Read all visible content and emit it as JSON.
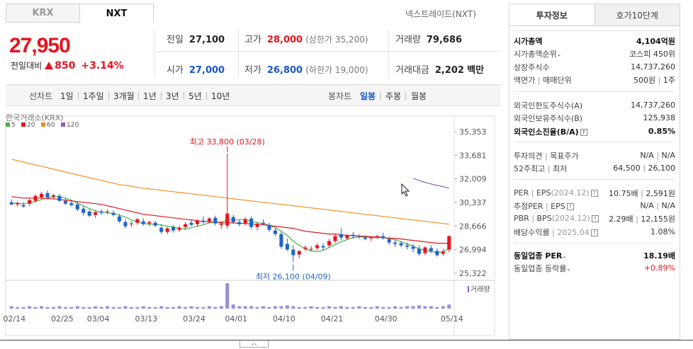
{
  "tabs": {
    "krx": "KRX",
    "nxt": "NXT"
  },
  "broker": "넥스트레이드(NXT)",
  "quote": {
    "price": "27,950",
    "change_label": "전일대비",
    "change": "850",
    "change_pct": "+3.14%"
  },
  "summary": {
    "prev_label": "전일",
    "prev": "27,100",
    "high_label": "고가",
    "high": "28,000",
    "upper_limit": "(상한가 35,200)",
    "volume_label": "거래량",
    "volume": "79,686",
    "open_label": "시가",
    "open": "27,000",
    "low_label": "저가",
    "low": "26,800",
    "lower_limit": "(하한가 19,000)",
    "amount_label": "거래대금",
    "amount": "2,202",
    "amount_unit": "백만"
  },
  "toolbar": {
    "line_label": "선차트",
    "periods": [
      "1일",
      "1주일",
      "3개월",
      "1년",
      "3년",
      "5년",
      "10년"
    ],
    "candle_label": "봉차트",
    "candles": [
      "일봉",
      "주봉",
      "월봉"
    ],
    "selected_candle": "일봉"
  },
  "chart_data": {
    "type": "candlestick",
    "source_label": "한국거래소(KRX)",
    "legend": [
      {
        "name": "5",
        "color": "#4caf50"
      },
      {
        "name": "20",
        "color": "#e4151f"
      },
      {
        "name": "60",
        "color": "#f08c1e"
      },
      {
        "name": "120",
        "color": "#8e5cc7"
      }
    ],
    "y_ticks": [
      "35,353",
      "33,681",
      "32,009",
      "30,337",
      "28,666",
      "26,994",
      "25,322"
    ],
    "ylim": [
      25322,
      35353
    ],
    "x_ticks": [
      "02/14",
      "02/25",
      "03/04",
      "03/13",
      "03/24",
      "04/01",
      "04/10",
      "04/21",
      "04/30",
      "05/14"
    ],
    "high_annotation": "최고 33,800 (03/28)",
    "low_annotation": "최저 26,100 (04/09)",
    "volume_label": "거래량",
    "candles": [
      {
        "o": 30350,
        "h": 30550,
        "l": 30150,
        "c": 30200
      },
      {
        "o": 30200,
        "h": 30400,
        "l": 30050,
        "c": 30300
      },
      {
        "o": 30150,
        "h": 30350,
        "l": 29950,
        "c": 30050
      },
      {
        "o": 30250,
        "h": 30600,
        "l": 30100,
        "c": 30500
      },
      {
        "o": 30450,
        "h": 30900,
        "l": 30350,
        "c": 30800
      },
      {
        "o": 30700,
        "h": 31100,
        "l": 30600,
        "c": 30950
      },
      {
        "o": 31000,
        "h": 31200,
        "l": 30650,
        "c": 30700
      },
      {
        "o": 30750,
        "h": 30950,
        "l": 30550,
        "c": 30850
      },
      {
        "o": 30800,
        "h": 30950,
        "l": 30400,
        "c": 30450
      },
      {
        "o": 30450,
        "h": 30650,
        "l": 30150,
        "c": 30250
      },
      {
        "o": 30300,
        "h": 30500,
        "l": 30050,
        "c": 30150
      },
      {
        "o": 30200,
        "h": 30350,
        "l": 29700,
        "c": 29850
      },
      {
        "o": 29900,
        "h": 30050,
        "l": 29400,
        "c": 29600
      },
      {
        "o": 29700,
        "h": 29850,
        "l": 29300,
        "c": 29400
      },
      {
        "o": 29450,
        "h": 29750,
        "l": 29250,
        "c": 29650
      },
      {
        "o": 29700,
        "h": 29850,
        "l": 29450,
        "c": 29600
      },
      {
        "o": 29650,
        "h": 29850,
        "l": 29500,
        "c": 29700
      },
      {
        "o": 29600,
        "h": 29800,
        "l": 29350,
        "c": 29450
      },
      {
        "o": 29350,
        "h": 29500,
        "l": 28900,
        "c": 29000
      },
      {
        "o": 28950,
        "h": 29150,
        "l": 28500,
        "c": 28650
      },
      {
        "o": 28800,
        "h": 29000,
        "l": 28600,
        "c": 28850
      },
      {
        "o": 28900,
        "h": 29250,
        "l": 28750,
        "c": 29150
      },
      {
        "o": 29000,
        "h": 29200,
        "l": 28700,
        "c": 28800
      },
      {
        "o": 28850,
        "h": 29050,
        "l": 28650,
        "c": 28950
      },
      {
        "o": 28900,
        "h": 29050,
        "l": 28600,
        "c": 28700
      },
      {
        "o": 28550,
        "h": 28800,
        "l": 28100,
        "c": 28250
      },
      {
        "o": 28250,
        "h": 28600,
        "l": 28100,
        "c": 28500
      },
      {
        "o": 28600,
        "h": 28750,
        "l": 28200,
        "c": 28350
      },
      {
        "o": 28400,
        "h": 28700,
        "l": 28250,
        "c": 28550
      },
      {
        "o": 28600,
        "h": 28950,
        "l": 28400,
        "c": 28800
      },
      {
        "o": 28900,
        "h": 29100,
        "l": 28650,
        "c": 28750
      },
      {
        "o": 28800,
        "h": 29150,
        "l": 28600,
        "c": 29050
      },
      {
        "o": 29050,
        "h": 29350,
        "l": 28800,
        "c": 28950
      },
      {
        "o": 29000,
        "h": 29300,
        "l": 28850,
        "c": 29200
      },
      {
        "o": 29250,
        "h": 29400,
        "l": 28700,
        "c": 28850
      },
      {
        "o": 28750,
        "h": 29000,
        "l": 28450,
        "c": 28850
      },
      {
        "o": 28700,
        "h": 33800,
        "l": 28500,
        "c": 29550
      },
      {
        "o": 29300,
        "h": 29450,
        "l": 28800,
        "c": 28950
      },
      {
        "o": 28950,
        "h": 29100,
        "l": 28650,
        "c": 28800
      },
      {
        "o": 28850,
        "h": 29300,
        "l": 28700,
        "c": 29150
      },
      {
        "o": 29200,
        "h": 29350,
        "l": 28450,
        "c": 28600
      },
      {
        "o": 28600,
        "h": 28950,
        "l": 28350,
        "c": 28800
      },
      {
        "o": 28900,
        "h": 29150,
        "l": 28700,
        "c": 28800
      },
      {
        "o": 28750,
        "h": 28900,
        "l": 28250,
        "c": 28400
      },
      {
        "o": 28350,
        "h": 28500,
        "l": 27950,
        "c": 28100
      },
      {
        "o": 28100,
        "h": 28250,
        "l": 27050,
        "c": 27200
      },
      {
        "o": 27400,
        "h": 27800,
        "l": 26900,
        "c": 27000
      },
      {
        "o": 27000,
        "h": 27300,
        "l": 26100,
        "c": 26600
      },
      {
        "o": 26650,
        "h": 26950,
        "l": 26400,
        "c": 26900
      },
      {
        "o": 27050,
        "h": 27300,
        "l": 26900,
        "c": 27150
      },
      {
        "o": 27050,
        "h": 27250,
        "l": 26900,
        "c": 27050
      },
      {
        "o": 27100,
        "h": 27450,
        "l": 26950,
        "c": 27300
      },
      {
        "o": 27250,
        "h": 27450,
        "l": 26950,
        "c": 27150
      },
      {
        "o": 27300,
        "h": 27750,
        "l": 27150,
        "c": 27600
      },
      {
        "o": 27600,
        "h": 28100,
        "l": 27450,
        "c": 27950
      },
      {
        "o": 28100,
        "h": 28500,
        "l": 27650,
        "c": 27850
      },
      {
        "o": 27800,
        "h": 28100,
        "l": 27700,
        "c": 28000
      },
      {
        "o": 28050,
        "h": 28250,
        "l": 27750,
        "c": 27950
      },
      {
        "o": 27950,
        "h": 28100,
        "l": 27750,
        "c": 27900
      },
      {
        "o": 27850,
        "h": 28000,
        "l": 27650,
        "c": 27750
      },
      {
        "o": 27800,
        "h": 27950,
        "l": 27600,
        "c": 27850
      },
      {
        "o": 27900,
        "h": 28050,
        "l": 27750,
        "c": 27950
      },
      {
        "o": 27950,
        "h": 28200,
        "l": 27700,
        "c": 27800
      },
      {
        "o": 27750,
        "h": 27900,
        "l": 27350,
        "c": 27500
      },
      {
        "o": 27500,
        "h": 27700,
        "l": 27200,
        "c": 27400
      },
      {
        "o": 27450,
        "h": 27600,
        "l": 27150,
        "c": 27300
      },
      {
        "o": 27300,
        "h": 27500,
        "l": 27000,
        "c": 27200
      },
      {
        "o": 27200,
        "h": 27400,
        "l": 26800,
        "c": 27050
      },
      {
        "o": 27050,
        "h": 27300,
        "l": 26550,
        "c": 26700
      },
      {
        "o": 26750,
        "h": 27250,
        "l": 26600,
        "c": 27150
      },
      {
        "o": 27100,
        "h": 27300,
        "l": 26750,
        "c": 26900
      },
      {
        "o": 26900,
        "h": 27100,
        "l": 26500,
        "c": 26600
      },
      {
        "o": 26700,
        "h": 27050,
        "l": 26550,
        "c": 26850
      },
      {
        "o": 27000,
        "h": 28000,
        "l": 26800,
        "c": 27950
      }
    ],
    "ma": {
      "5": [
        30300,
        30250,
        30250,
        30300,
        30400,
        30550,
        30650,
        30750,
        30750,
        30650,
        30500,
        30300,
        30100,
        29900,
        29750,
        29650,
        29600,
        29550,
        29450,
        29300,
        29100,
        28950,
        28850,
        28800,
        28800,
        28750,
        28650,
        28600,
        28500,
        28450,
        28550,
        28650,
        28750,
        28900,
        28950,
        28950,
        29100,
        29100,
        29100,
        29150,
        29000,
        28900,
        28850,
        28700,
        28550,
        28300,
        28000,
        27600,
        27300,
        27050,
        26900,
        26850,
        26950,
        27150,
        27350,
        27550,
        27700,
        27850,
        27900,
        27900,
        27850,
        27850,
        27850,
        27800,
        27700,
        27550,
        27400,
        27250,
        27050,
        26950,
        26850,
        26800,
        26850,
        27050
      ],
      "20": [
        30750,
        30700,
        30650,
        30650,
        30650,
        30650,
        30600,
        30600,
        30550,
        30500,
        30450,
        30400,
        30350,
        30300,
        30250,
        30200,
        30100,
        30000,
        29900,
        29800,
        29700,
        29600,
        29500,
        29450,
        29400,
        29350,
        29300,
        29250,
        29200,
        29150,
        29100,
        29050,
        29000,
        28950,
        28950,
        28900,
        28900,
        28900,
        28850,
        28850,
        28800,
        28800,
        28750,
        28700,
        28650,
        28600,
        28550,
        28500,
        28400,
        28300,
        28250,
        28200,
        28150,
        28100,
        28100,
        28050,
        28000,
        28000,
        27950,
        27950,
        27900,
        27900,
        27850,
        27800,
        27800,
        27750,
        27700,
        27650,
        27600,
        27550,
        27500,
        27450,
        27450,
        27450
      ],
      "60": [
        33400,
        33300,
        33200,
        33100,
        33000,
        32900,
        32800,
        32700,
        32600,
        32500,
        32400,
        32300,
        32200,
        32100,
        32000,
        31900,
        31800,
        31700,
        31600,
        31550,
        31500,
        31400,
        31350,
        31300,
        31250,
        31200,
        31150,
        31100,
        31050,
        31000,
        30950,
        30900,
        30850,
        30800,
        30750,
        30700,
        30650,
        30600,
        30550,
        30500,
        30450,
        30400,
        30350,
        30300,
        30250,
        30200,
        30150,
        30100,
        30050,
        30000,
        29950,
        29900,
        29850,
        29800,
        29750,
        29700,
        29650,
        29600,
        29550,
        29500,
        29450,
        29400,
        29350,
        29300,
        29250,
        29200,
        29150,
        29100,
        29050,
        29000,
        28950,
        28900,
        28850,
        28800
      ],
      "120": [
        null,
        null,
        null,
        null,
        null,
        null,
        null,
        null,
        null,
        null,
        null,
        null,
        null,
        null,
        null,
        null,
        null,
        null,
        null,
        null,
        null,
        null,
        null,
        null,
        null,
        null,
        null,
        null,
        null,
        null,
        null,
        null,
        null,
        null,
        null,
        null,
        null,
        null,
        null,
        null,
        null,
        null,
        null,
        null,
        null,
        null,
        null,
        null,
        null,
        null,
        null,
        null,
        null,
        null,
        null,
        null,
        null,
        null,
        null,
        null,
        null,
        null,
        null,
        null,
        null,
        null,
        null,
        32050,
        31900,
        31750,
        31650,
        31550,
        31450,
        31350
      ]
    },
    "volume": [
      3,
      2,
      2,
      3,
      2,
      3,
      2,
      2,
      3,
      2,
      2,
      3,
      2,
      2,
      3,
      2,
      3,
      2,
      2,
      3,
      2,
      2,
      3,
      2,
      2,
      3,
      2,
      2,
      3,
      2,
      3,
      2,
      2,
      3,
      2,
      3,
      31,
      5,
      3,
      3,
      3,
      2,
      3,
      2,
      3,
      3,
      4,
      3,
      2,
      2,
      3,
      2,
      2,
      3,
      2,
      3,
      2,
      2,
      3,
      2,
      2,
      3,
      2,
      2,
      3,
      2,
      3,
      3,
      4,
      3,
      3,
      2,
      3,
      5
    ]
  },
  "panel": {
    "tab_info": "투자정보",
    "tab_orderbook": "호가10단계",
    "rows": [
      {
        "l": "시가총액",
        "r": "4,104억원"
      },
      {
        "l": "시가총액순위",
        "r": "코스피 450위"
      },
      {
        "l": "상장주식수",
        "r": "14,737,260"
      },
      {
        "l": "액면가",
        "l2": "매매단위",
        "r": "500원",
        "r2": "1주"
      },
      {
        "l": "외국인한도주식수(A)",
        "r": "14,737,260"
      },
      {
        "l": "외국인보유주식수(B)",
        "r": "125,938"
      },
      {
        "l": "외국인소진율(B/A)",
        "r": "0.85%"
      },
      {
        "l": "투자의견",
        "l2": "목표주가",
        "r": "N/A",
        "r2": "N/A"
      },
      {
        "l": "52주최고",
        "l2": "최저",
        "r": "64,500",
        "r2": "26,100"
      },
      {
        "l": "PER",
        "l2": "EPS",
        "l2sub": "(2024.12)",
        "r": "10.75배",
        "r2": "2,591원"
      },
      {
        "l": "추정PER",
        "l2": "EPS",
        "r": "N/A",
        "r2": "N/A"
      },
      {
        "l": "PBR",
        "l2": "BPS",
        "l2sub": "(2024.12)",
        "r": "2.29배",
        "r2": "12,155원"
      },
      {
        "l": "배당수익률",
        "l2sub": "2025.04",
        "r": "1.08%"
      },
      {
        "l": "동일업종 PER",
        "r": "18.19배"
      },
      {
        "l": "동일업종 등락률",
        "r": "+0.89%"
      }
    ]
  },
  "collapse_glyph": "︿"
}
